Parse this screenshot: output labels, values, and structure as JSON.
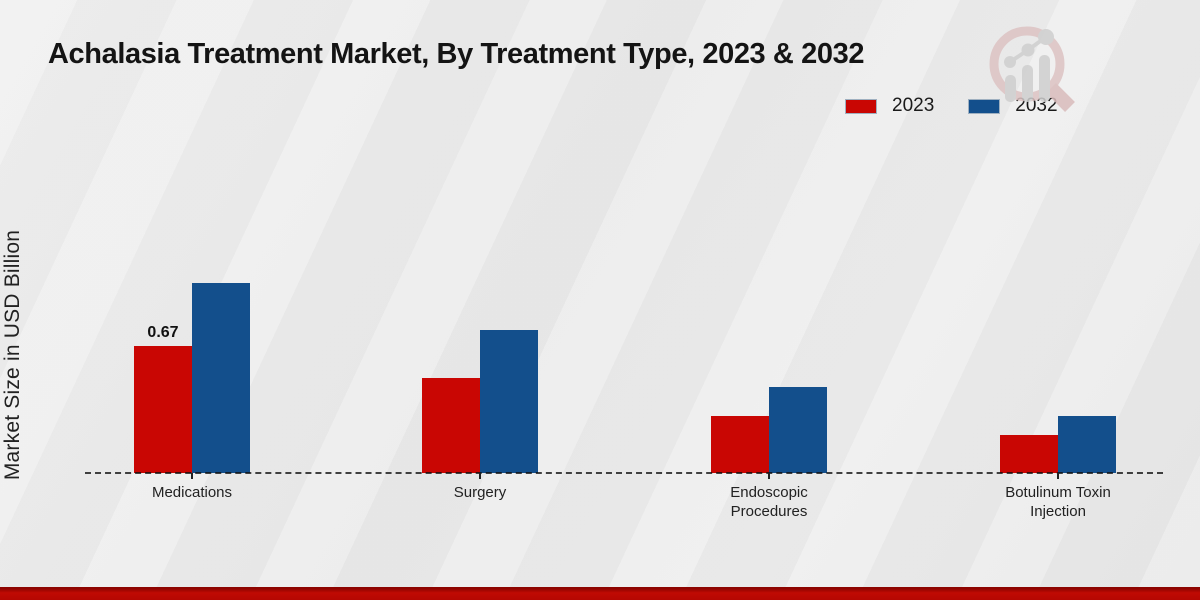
{
  "page": {
    "background_color": "#e9e9e9",
    "footer_accent_color": "#b50702"
  },
  "watermark": {
    "icon": "market-research-chart-magnifier-logo"
  },
  "chart_data": {
    "type": "bar",
    "title": "Achalasia Treatment Market, By Treatment Type, 2023 & 2032",
    "xlabel": "",
    "ylabel": "Market Size in USD Billion",
    "categories": [
      "Medications",
      "Surgery",
      "Endoscopic Procedures",
      "Botulinum Toxin Injection"
    ],
    "series": [
      {
        "name": "2023",
        "color": "#c90603",
        "values": [
          0.67,
          0.5,
          0.3,
          0.2
        ],
        "data_labels": [
          "0.67",
          null,
          null,
          null
        ]
      },
      {
        "name": "2032",
        "color": "#134f8c",
        "values": [
          1.0,
          0.75,
          0.45,
          0.3
        ],
        "data_labels": [
          null,
          null,
          null,
          null
        ]
      }
    ],
    "ylim": [
      0,
      1.05
    ],
    "grid": false,
    "legend_position": "top-right",
    "axis_style": "dashed-baseline",
    "y_ticks_visible": false
  }
}
